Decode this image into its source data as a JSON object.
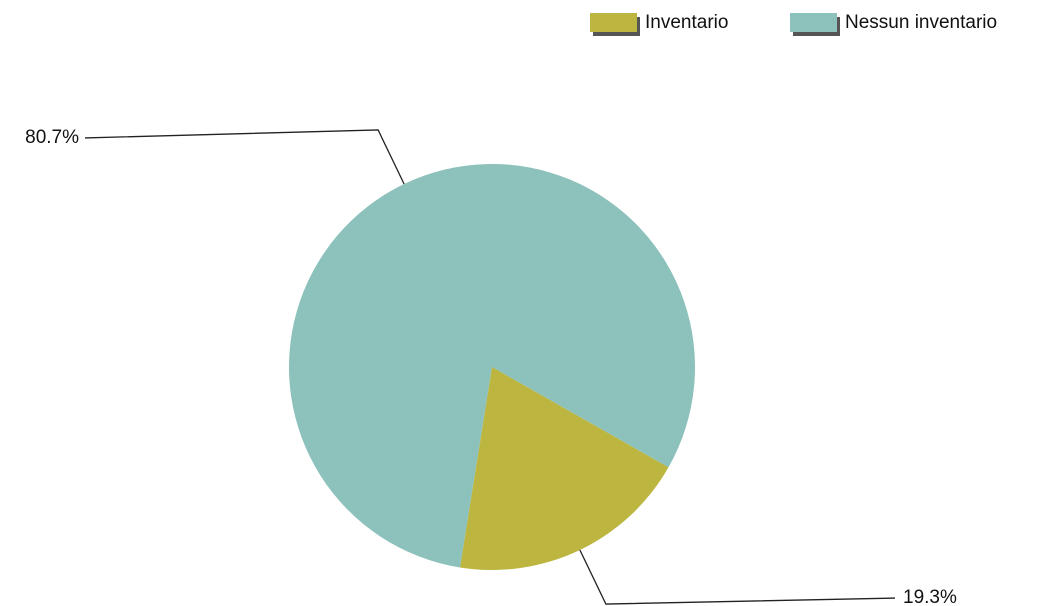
{
  "chart_data": {
    "type": "pie",
    "series": [
      {
        "name": "Inventario",
        "color": "#bcb640",
        "values": [
          19.3
        ],
        "value_labels": [
          "19.3%"
        ]
      },
      {
        "name": "Nessun inventario",
        "color": "#8dc1bb",
        "values": [
          80.7
        ],
        "value_labels": [
          "80.7%"
        ]
      }
    ],
    "legend": "top-right"
  }
}
